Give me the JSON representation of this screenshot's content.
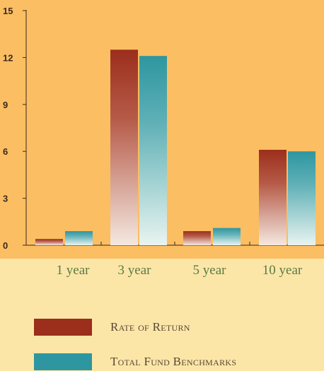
{
  "chart_data": {
    "type": "bar",
    "categories": [
      "1 year",
      "3 year",
      "5 year",
      "10 year"
    ],
    "series": [
      {
        "name": "Rate of Return",
        "values": [
          0.4,
          12.5,
          0.9,
          6.1
        ]
      },
      {
        "name": "Total Fund Benchmarks",
        "values": [
          0.9,
          12.1,
          1.1,
          6.0
        ]
      }
    ],
    "yticks": [
      "0",
      "3",
      "6",
      "9",
      "12",
      "15"
    ],
    "ylim": [
      0,
      15
    ],
    "title": "",
    "xlabel": "",
    "ylabel": "",
    "grid": false,
    "legend_position": "bottom"
  },
  "colors": {
    "plot_background": "#FBBE62",
    "page_background": "#FBE6A8",
    "series_1_top": "#9C2E1C",
    "series_1_bottom": "#F4E8E0",
    "series_2_top": "#2E96A0",
    "series_2_bottom": "#E8F4F0",
    "category_label": "#5B7A45",
    "axis": "#3A2A1A"
  }
}
